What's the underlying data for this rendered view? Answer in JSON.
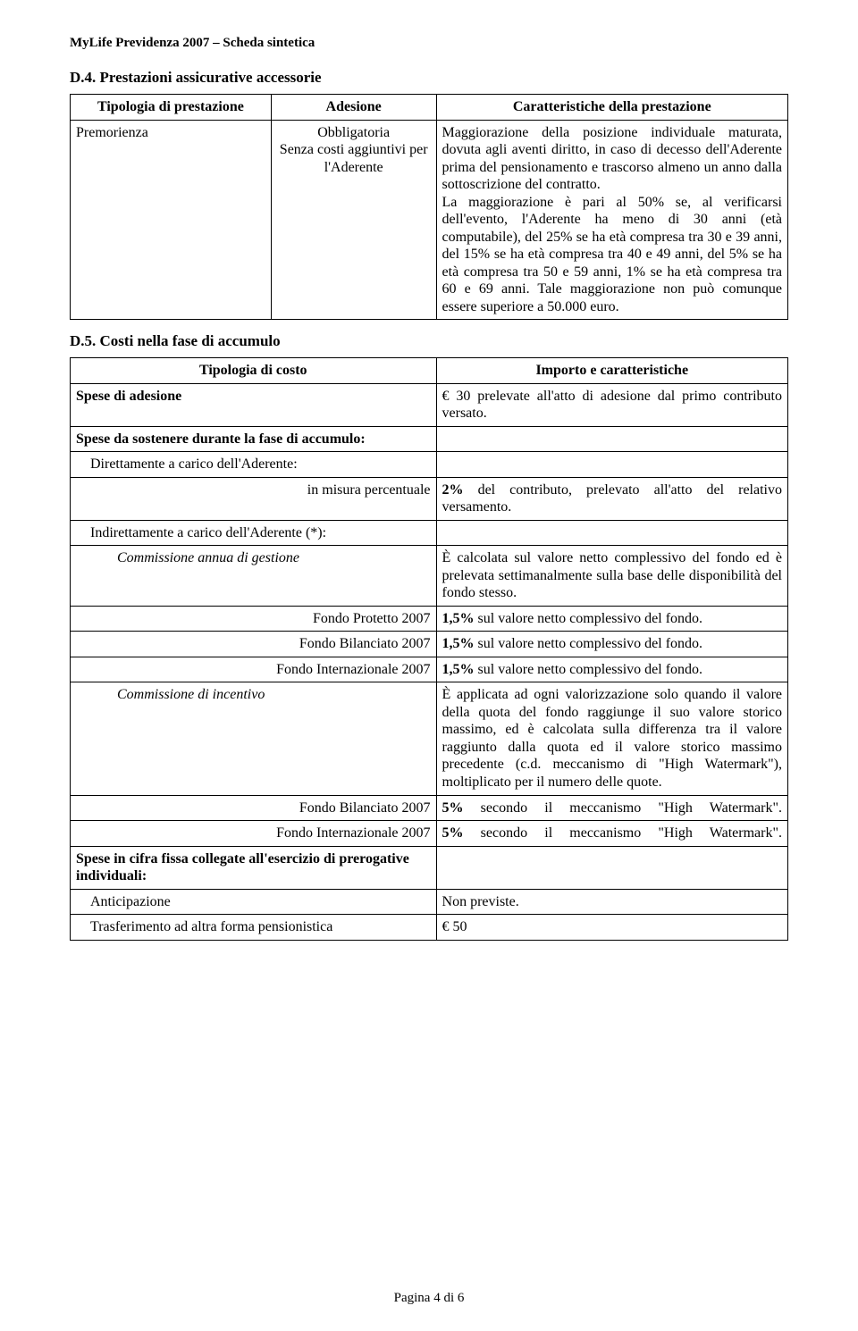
{
  "header": "MyLife Previdenza 2007 – Scheda sintetica",
  "d4": {
    "title": "D.4. Prestazioni assicurative accessorie",
    "th1": "Tipologia di prestazione",
    "th2": "Adesione",
    "th3": "Caratteristiche della prestazione",
    "r1c1": "Premorienza",
    "r1c2a": "Obbligatoria",
    "r1c2b": "Senza costi aggiuntivi per l'Aderente",
    "r1c3": "Maggiorazione della posizione individuale maturata, dovuta agli aventi diritto, in caso di decesso dell'Aderente prima del pensionamento e trascorso almeno un anno dalla sottoscrizione del contratto.\nLa maggiorazione è pari al 50% se, al verificarsi dell'evento, l'Aderente ha meno di 30 anni (età computabile), del 25% se ha età compresa tra 30 e 39 anni, del 15% se ha età compresa tra 40 e 49 anni, del 5% se ha età compresa tra 50 e 59 anni, 1% se ha età compresa tra 60 e 69 anni. Tale maggiorazione non può comunque essere superiore a 50.000 euro."
  },
  "d5": {
    "title": "D.5. Costi nella fase di accumulo",
    "th1": "Tipologia di costo",
    "th2": "Importo e caratteristiche",
    "rows": [
      {
        "l": "Spese di adesione",
        "lclass": "bold",
        "r": "€ 30 prelevate all'atto di adesione dal primo contributo versato.",
        "rclass": "justify"
      },
      {
        "l": "Spese da sostenere durante la fase di accumulo:",
        "lclass": "bold",
        "r": ""
      },
      {
        "l": "Direttamente a carico dell'Aderente:",
        "lclass": "indent1",
        "r": ""
      },
      {
        "l": "in misura percentuale",
        "lclass": "indent3",
        "r": "2% del contributo, prelevato all'atto del relativo versamento.",
        "rclass": "justify"
      },
      {
        "l": "Indirettamente a carico dell'Aderente (*):",
        "lclass": "indent1",
        "r": ""
      },
      {
        "l": "Commissione annua di gestione",
        "lclass": "indent2 italic",
        "r": "È calcolata sul valore netto complessivo del fondo ed è prelevata settimanalmente sulla base delle disponibilità del fondo stesso.",
        "rclass": "justify"
      },
      {
        "l": "Fondo Protetto 2007",
        "lclass": "indent3",
        "r": "1,5% sul valore netto complessivo del fondo.",
        "rspan": "bold-start"
      },
      {
        "l": "Fondo Bilanciato 2007",
        "lclass": "indent3",
        "r": "1,5% sul valore netto complessivo del fondo."
      },
      {
        "l": "Fondo Internazionale 2007",
        "lclass": "indent3",
        "r": "1,5% sul valore netto complessivo del fondo."
      },
      {
        "l": "Commissione di incentivo",
        "lclass": "indent2 italic",
        "r": "È applicata ad ogni valorizzazione solo quando il valore della quota del fondo raggiunge il suo valore storico massimo, ed è calcolata sulla differenza tra il valore raggiunto dalla quota ed il valore storico massimo precedente (c.d. meccanismo di \"High Watermark\"), moltiplicato per il numero delle quote.",
        "rclass": "justify"
      },
      {
        "l": "Fondo Bilanciato 2007",
        "lclass": "indent3",
        "r": "5% secondo il meccanismo \"High Watermark\".",
        "rspecial": "hw"
      },
      {
        "l": "Fondo Internazionale 2007",
        "lclass": "indent3",
        "r": "5% secondo il meccanismo \"High Watermark\".",
        "rspecial": "hw"
      },
      {
        "l": "Spese in cifra fissa collegate all'esercizio di prerogative individuali:",
        "lclass": "bold",
        "r": ""
      },
      {
        "l": "Anticipazione",
        "lclass": "indent1",
        "r": "Non previste."
      },
      {
        "l": "Trasferimento ad altra forma pensionistica",
        "lclass": "indent1",
        "r": "€ 50"
      }
    ]
  },
  "footer": "Pagina 4 di 6"
}
